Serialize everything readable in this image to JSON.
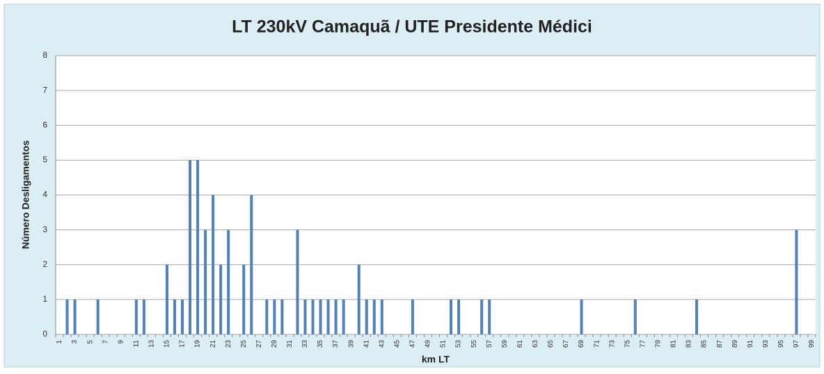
{
  "chart_data": {
    "type": "bar",
    "title": "LT 230kV Camaquã / UTE Presidente Médici",
    "x_label": "km LT",
    "y_label": "Número Desligamentos",
    "categories": [
      "1",
      null,
      "3",
      null,
      "5",
      null,
      "7",
      null,
      "9",
      null,
      "11",
      null,
      "13",
      null,
      "15",
      null,
      "17",
      null,
      "19",
      null,
      "21",
      null,
      "23",
      null,
      "25",
      null,
      "27",
      null,
      "29",
      null,
      "31",
      null,
      "33",
      null,
      "35",
      null,
      "37",
      null,
      "39",
      null,
      "41",
      null,
      "43",
      null,
      "45",
      null,
      "47",
      null,
      "49",
      null,
      "51",
      null,
      "53",
      null,
      "55",
      null,
      "57",
      null,
      "59",
      null,
      "61",
      null,
      "63",
      null,
      "65",
      null,
      "67",
      null,
      "69",
      null,
      "71",
      null,
      "73",
      null,
      "75",
      null,
      "77",
      null,
      "79",
      null,
      "81",
      null,
      "83",
      null,
      "85",
      null,
      "87",
      null,
      "89",
      null,
      "91",
      null,
      "93",
      null,
      "95",
      null,
      "97",
      null,
      "99"
    ],
    "values": [
      0,
      1,
      1,
      0,
      0,
      1,
      0,
      0,
      0,
      0,
      1,
      1,
      0,
      0,
      2,
      1,
      1,
      5,
      5,
      3,
      4,
      2,
      3,
      0,
      2,
      4,
      0,
      1,
      1,
      1,
      0,
      3,
      1,
      1,
      1,
      1,
      1,
      1,
      0,
      2,
      1,
      1,
      1,
      0,
      0,
      0,
      1,
      0,
      0,
      0,
      0,
      1,
      1,
      0,
      0,
      1,
      1,
      0,
      0,
      0,
      0,
      0,
      0,
      0,
      0,
      0,
      0,
      0,
      1,
      0,
      0,
      0,
      0,
      0,
      0,
      1,
      0,
      0,
      0,
      0,
      0,
      0,
      0,
      1,
      0,
      0,
      0,
      0,
      0,
      0,
      0,
      0,
      0,
      0,
      0,
      0,
      3,
      0,
      0
    ],
    "color": "#4f81bd",
    "ylim": [
      0,
      8
    ],
    "yticks": [
      0,
      1,
      2,
      3,
      4,
      5,
      6,
      7,
      8
    ],
    "grid": true
  }
}
